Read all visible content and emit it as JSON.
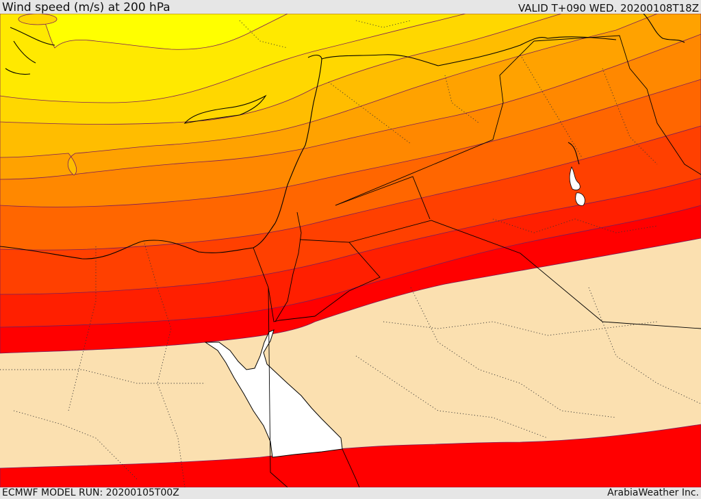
{
  "header": {
    "title": "Wind speed (m/s) at 200 hPa",
    "valid": "VALID T+090 WED. 20200108T18Z"
  },
  "footer": {
    "model_run": "ECMWF MODEL RUN: 20200105T00Z",
    "credit": "ArabiaWeather Inc."
  },
  "map": {
    "field": "wind speed",
    "units": "m/s",
    "level_hpa": 200,
    "colors": {
      "low_speed_fill": "#fbe0b0",
      "band_red": "#ff0000",
      "band_red_orange": "#ff1f00",
      "band_orange_red": "#ff4000",
      "band_dark_orange": "#ff6600",
      "band_orange": "#ff8800",
      "band_light_orange": "#ffa200",
      "band_amber": "#ffbd00",
      "band_gold": "#ffd700",
      "band_yellow": "#ffe900",
      "core_yellow": "#ffff00",
      "sea_lakes": "#ffffff",
      "borders": "#000000"
    }
  }
}
